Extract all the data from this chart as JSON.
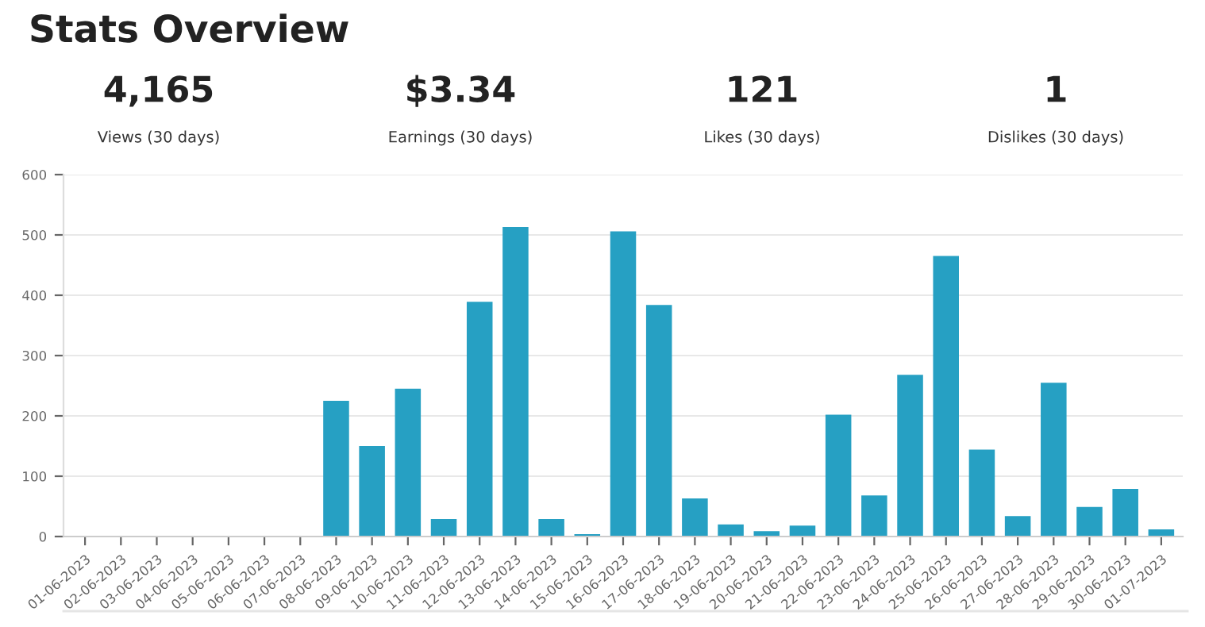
{
  "chart_data": {
    "type": "bar",
    "title": "Stats Overview",
    "annotations": [
      "4,165",
      "Views (30 days)",
      "$3.34",
      "Earnings (30 days)",
      "121",
      "Likes (30 days)",
      "1",
      "Dislikes (30 days)"
    ],
    "categories": [
      "01-06-2023",
      "02-06-2023",
      "03-06-2023",
      "04-06-2023",
      "05-06-2023",
      "06-06-2023",
      "07-06-2023",
      "08-06-2023",
      "09-06-2023",
      "10-06-2023",
      "11-06-2023",
      "12-06-2023",
      "13-06-2023",
      "14-06-2023",
      "15-06-2023",
      "16-06-2023",
      "17-06-2023",
      "18-06-2023",
      "19-06-2023",
      "20-06-2023",
      "21-06-2023",
      "22-06-2023",
      "23-06-2023",
      "24-06-2023",
      "25-06-2023",
      "26-06-2023",
      "27-06-2023",
      "28-06-2023",
      "29-06-2023",
      "30-06-2023",
      "01-07-2023"
    ],
    "values": [
      0,
      0,
      0,
      0,
      0,
      0,
      0,
      225,
      150,
      245,
      29,
      389,
      513,
      29,
      4,
      506,
      384,
      63,
      20,
      9,
      18,
      202,
      68,
      268,
      465,
      144,
      34,
      255,
      49,
      79,
      12
    ],
    "color": "#26a0c3",
    "ylim": [
      0,
      600
    ],
    "yticks": [
      0,
      100,
      200,
      300,
      400,
      500,
      600
    ],
    "grid": "y",
    "legend": false
  }
}
